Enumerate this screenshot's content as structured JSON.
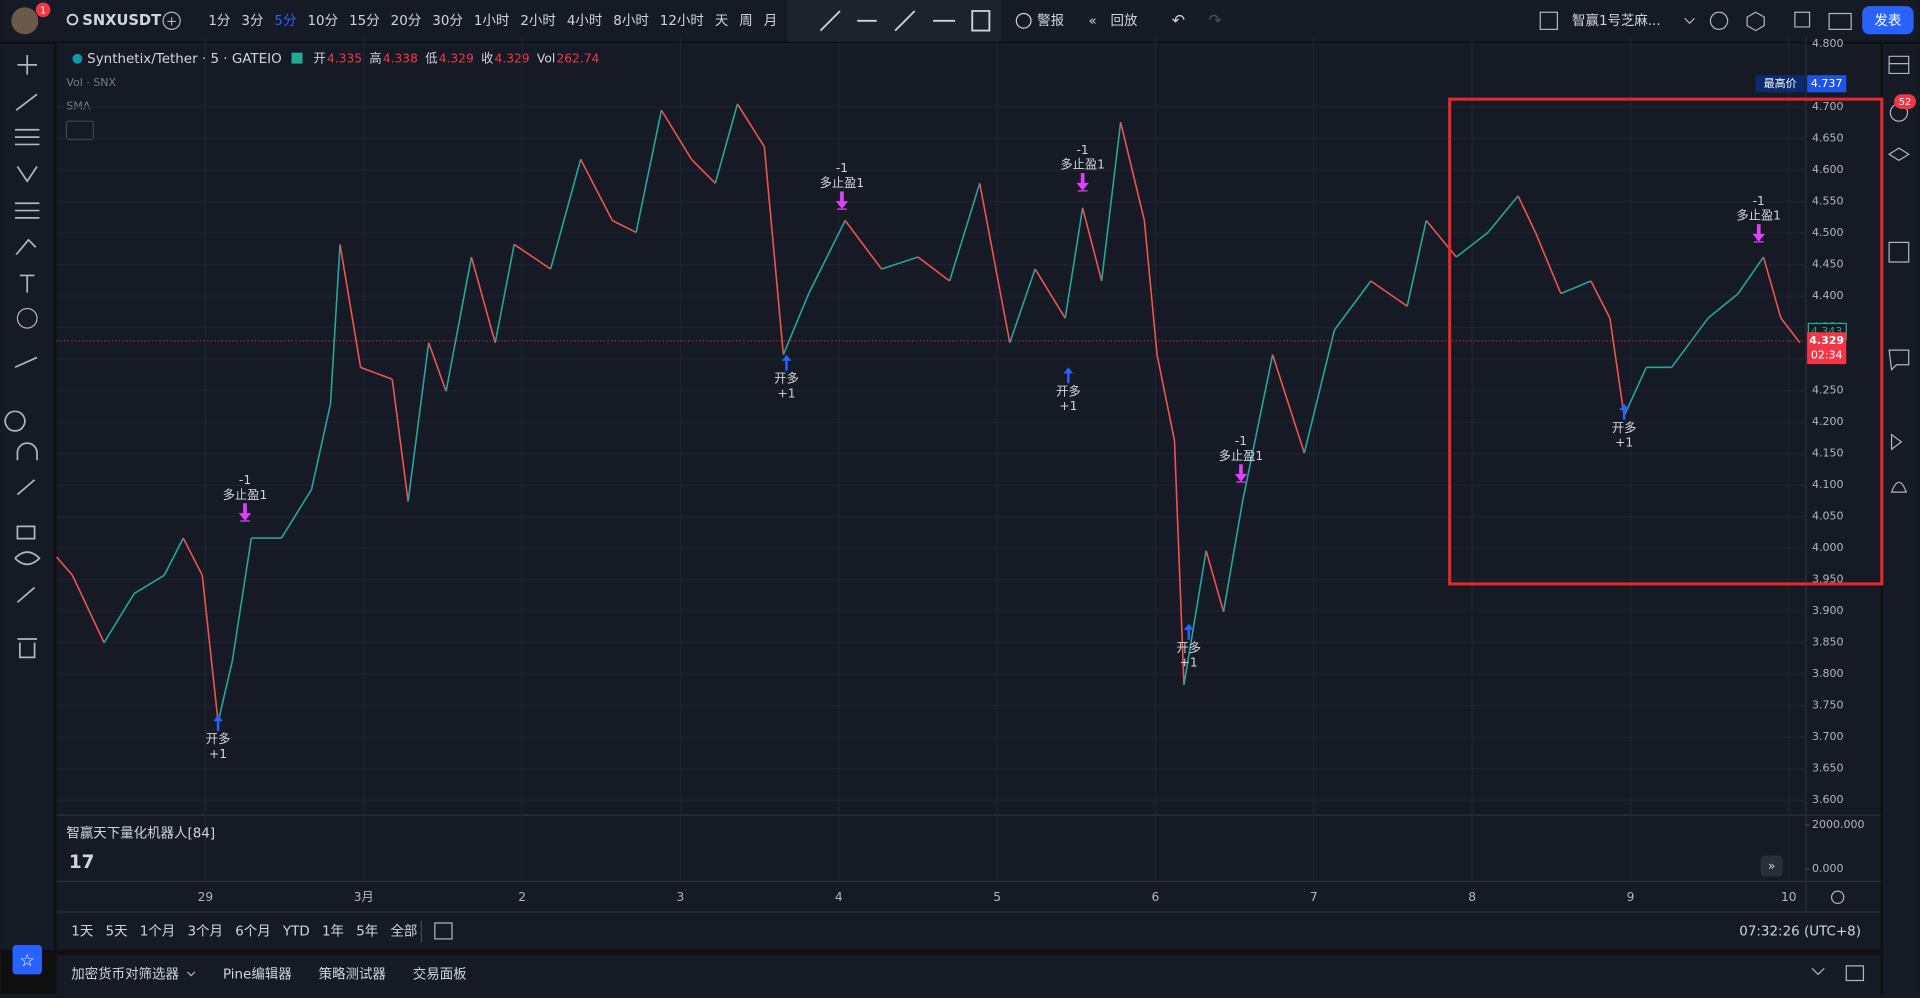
{
  "toolbar": {
    "badge": "1",
    "symbol": "SNXUSDT",
    "intervals": [
      "1分",
      "3分",
      "5分",
      "10分",
      "15分",
      "20分",
      "30分",
      "1小时",
      "2小时",
      "4小时",
      "8小时",
      "12小时",
      "天",
      "周",
      "月"
    ],
    "active_interval": "5分",
    "alert": "警报",
    "replay": "回放",
    "layout": "智赢1号芝麻...",
    "publish": "发表"
  },
  "legend": {
    "title": "Synthetix/Tether · 5 · GATEIO",
    "ohlc": [
      {
        "label": "开",
        "value": "4.335"
      },
      {
        "label": "高",
        "value": "4.338"
      },
      {
        "label": "低",
        "value": "4.329"
      },
      {
        "label": "收",
        "value": "4.329"
      },
      {
        "label": "Vol",
        "value": "262.74"
      }
    ],
    "volume": "Vol · SNX",
    "sma": "SMA"
  },
  "chart_data": {
    "type": "line",
    "up_color": "#26a69a",
    "down_color": "#ef5350",
    "grid": true,
    "x": [
      -0.94,
      -0.84,
      -0.64,
      -0.45,
      -0.26,
      -0.14,
      -0.02,
      0.08,
      0.17,
      0.29,
      0.48,
      0.67,
      0.79,
      0.85,
      0.98,
      1.18,
      1.28,
      1.41,
      1.52,
      1.68,
      1.83,
      1.95,
      2.18,
      2.37,
      2.57,
      2.72,
      2.88,
      3.07,
      3.22,
      3.36,
      3.53,
      3.65,
      3.81,
      4.04,
      4.27,
      4.5,
      4.7,
      4.89,
      5.08,
      5.24,
      5.43,
      5.54,
      5.66,
      5.78,
      5.93,
      6.01,
      6.12,
      6.18,
      6.32,
      6.43,
      6.55,
      6.74,
      6.94,
      7.13,
      7.36,
      7.59,
      7.71,
      7.9,
      8.1,
      8.29,
      8.4,
      8.56,
      8.75,
      8.87,
      8.96,
      9.1,
      9.26,
      9.49,
      9.68,
      9.84,
      9.95,
      10.07
    ],
    "values": [
      3.986,
      3.957,
      3.85,
      3.928,
      3.957,
      4.016,
      3.957,
      3.724,
      3.821,
      4.016,
      4.016,
      4.093,
      4.229,
      4.482,
      4.287,
      4.268,
      4.074,
      4.326,
      4.249,
      4.462,
      4.326,
      4.482,
      4.443,
      4.617,
      4.52,
      4.501,
      4.695,
      4.617,
      4.579,
      4.705,
      4.637,
      4.307,
      4.404,
      4.52,
      4.443,
      4.462,
      4.424,
      4.579,
      4.326,
      4.443,
      4.365,
      4.54,
      4.424,
      4.676,
      4.52,
      4.307,
      4.171,
      3.783,
      3.996,
      3.899,
      4.074,
      4.307,
      4.151,
      4.346,
      4.424,
      4.384,
      4.52,
      4.462,
      4.501,
      4.559,
      4.501,
      4.404,
      4.424,
      4.365,
      4.21,
      4.287,
      4.287,
      4.365,
      4.404,
      4.462,
      4.365,
      4.326
    ],
    "xlim": [
      -0.94,
      10.1
    ],
    "ylim": [
      3.58,
      4.81
    ],
    "xticks": [
      {
        "value": 0,
        "label": "29"
      },
      {
        "value": 1,
        "label": "3月"
      },
      2,
      3,
      4,
      5,
      6,
      7,
      8,
      9,
      10
    ],
    "yticks": [
      {
        "value": 3.6,
        "label": "3.600"
      },
      {
        "value": 3.65,
        "label": "3.650"
      },
      {
        "value": 3.7,
        "label": "3.700"
      },
      {
        "value": 3.75,
        "label": "3.750"
      },
      {
        "value": 3.8,
        "label": "3.800"
      },
      {
        "value": 3.85,
        "label": "3.850"
      },
      {
        "value": 3.9,
        "label": "3.900"
      },
      {
        "value": 3.95,
        "label": "3.950"
      },
      {
        "value": 4.0,
        "label": "4.000"
      },
      {
        "value": 4.05,
        "label": "4.050"
      },
      {
        "value": 4.1,
        "label": "4.100"
      },
      {
        "value": 4.15,
        "label": "4.150"
      },
      {
        "value": 4.2,
        "label": "4.200"
      },
      {
        "value": 4.25,
        "label": "4.250"
      },
      {
        "value": 4.3,
        "label": "4.300"
      },
      {
        "value": 4.35,
        "label": "4.350"
      },
      {
        "value": 4.4,
        "label": "4.400"
      },
      {
        "value": 4.45,
        "label": "4.450"
      },
      {
        "value": 4.5,
        "label": "4.500"
      },
      {
        "value": 4.55,
        "label": "4.550"
      },
      {
        "value": 4.6,
        "label": "4.600"
      },
      {
        "value": 4.65,
        "label": "4.650"
      },
      {
        "value": 4.7,
        "label": "4.700"
      },
      {
        "value": 4.8,
        "label": "4.800"
      }
    ],
    "signals": [
      {
        "type": "buy",
        "x": 0.08,
        "price": 3.735,
        "label": "开多",
        "qty": "+1"
      },
      {
        "type": "sell",
        "x": 0.25,
        "price": 4.045,
        "label": "多止盈1",
        "qty": "-1"
      },
      {
        "type": "buy",
        "x": 3.67,
        "price": 4.307,
        "label": "开多",
        "qty": "+1"
      },
      {
        "type": "sell",
        "x": 4.02,
        "price": 4.54,
        "label": "多止盈1",
        "qty": "-1"
      },
      {
        "type": "buy",
        "x": 5.45,
        "price": 4.287,
        "label": "开多",
        "qty": "+1"
      },
      {
        "type": "sell",
        "x": 5.54,
        "price": 4.569,
        "label": "多止盈1",
        "qty": "-1"
      },
      {
        "type": "buy",
        "x": 6.21,
        "price": 3.88,
        "label": "开多",
        "qty": "+1"
      },
      {
        "type": "sell",
        "x": 6.54,
        "price": 4.107,
        "label": "多止盈1",
        "qty": "-1"
      },
      {
        "type": "buy",
        "x": 8.96,
        "price": 4.229,
        "label": "开多",
        "qty": "+1"
      },
      {
        "type": "sell",
        "x": 9.81,
        "price": 4.488,
        "label": "多止盈1",
        "qty": "-1"
      }
    ],
    "price_labels": {
      "high_label": "最高价",
      "high": 4.737,
      "bid": 4.343,
      "last": 4.329,
      "countdown": "02:34"
    }
  },
  "indicator": {
    "name": "智赢天下量化机器人[84]",
    "yticks": [
      {
        "value": 2000,
        "label": "2000.000"
      },
      {
        "value": 0,
        "label": "0.000"
      }
    ]
  },
  "sidebar_badge": "52",
  "range_buttons": [
    "1天",
    "5天",
    "1个月",
    "3个月",
    "6个月",
    "YTD",
    "1年",
    "5年",
    "全部"
  ],
  "clock": "07:32:26 (UTC+8)",
  "bottom_tabs": [
    "加密货币对筛选器",
    "Pine编辑器",
    "策略测试器",
    "交易面板"
  ]
}
